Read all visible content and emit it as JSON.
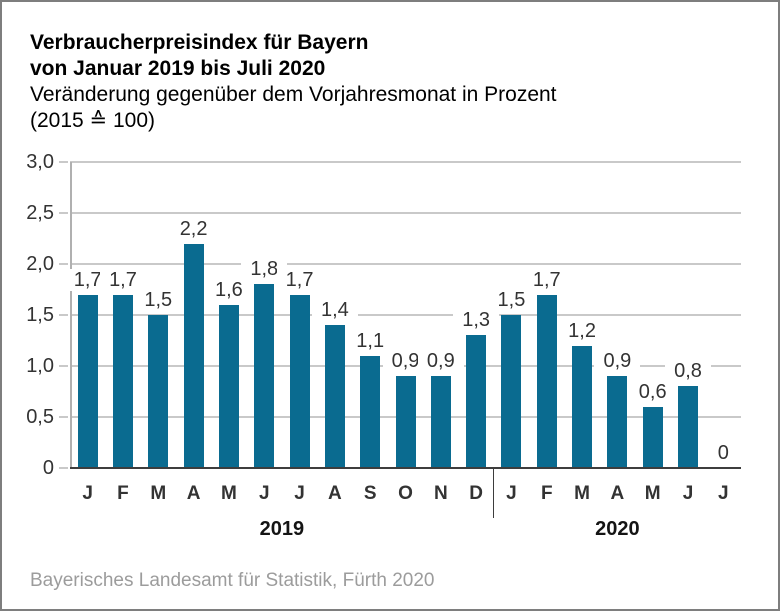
{
  "header": {
    "title_line1": "Verbraucherpreisindex für Bayern",
    "title_line2": "von Januar 2019 bis Juli 2020",
    "subtitle_line1": "Veränderung gegenüber dem Vorjahresmonat in Prozent",
    "subtitle_line2": "(2015 ≙ 100)"
  },
  "footer": {
    "source": "Bayerisches Landesamt für Statistik, Fürth 2020"
  },
  "chart_data": {
    "type": "bar",
    "title": "Verbraucherpreisindex für Bayern von Januar 2019 bis Juli 2020",
    "subtitle": "Veränderung gegenüber dem Vorjahresmonat in Prozent (2015 ≙ 100)",
    "xlabel": "",
    "ylabel": "",
    "categories": [
      "J",
      "F",
      "M",
      "A",
      "M",
      "J",
      "J",
      "A",
      "S",
      "O",
      "N",
      "D",
      "J",
      "F",
      "M",
      "A",
      "M",
      "J",
      "J"
    ],
    "values": [
      1.7,
      1.7,
      1.5,
      2.2,
      1.6,
      1.8,
      1.7,
      1.4,
      1.1,
      0.9,
      0.9,
      1.3,
      1.5,
      1.7,
      1.2,
      0.9,
      0.6,
      0.8,
      0
    ],
    "value_labels": [
      "1,7",
      "1,7",
      "1,5",
      "2,2",
      "1,6",
      "1,8",
      "1,7",
      "1,4",
      "1,1",
      "0,9",
      "0,9",
      "1,3",
      "1,5",
      "1,7",
      "1,2",
      "0,9",
      "0,6",
      "0,8",
      "0"
    ],
    "year_groups": [
      {
        "label": "2019",
        "from": 0,
        "to": 11
      },
      {
        "label": "2020",
        "from": 12,
        "to": 18
      }
    ],
    "ylim": [
      0,
      3
    ],
    "yticks": {
      "values": [
        0,
        0.5,
        1,
        1.5,
        2,
        2.5,
        3
      ],
      "labels": [
        "0",
        "0,5",
        "1,0",
        "1,5",
        "2,0",
        "2,5",
        "3,0"
      ]
    },
    "grid": true,
    "legend": false,
    "bar_color": "#0a6b90",
    "grid_color": "#c9c9c9",
    "axis_color": "#b0b0b0",
    "baseline_color": "#3d3d3d"
  }
}
